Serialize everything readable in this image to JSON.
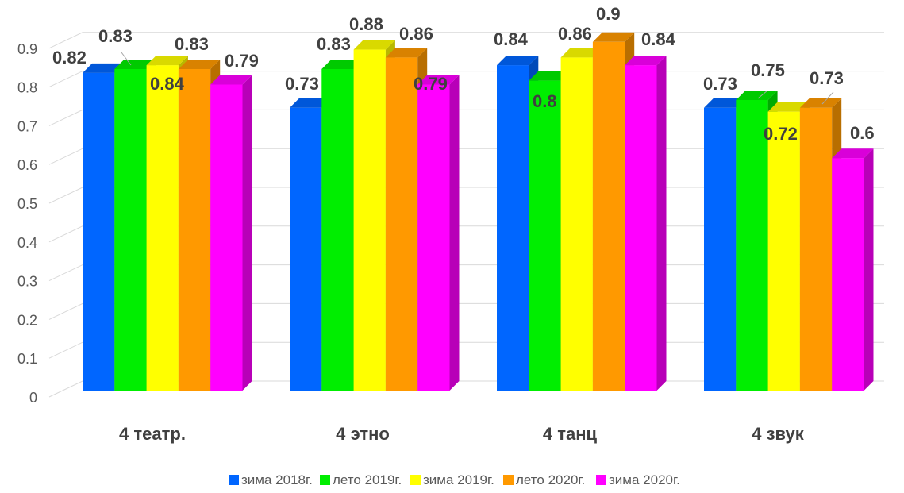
{
  "chart_data": {
    "type": "bar",
    "title": "",
    "xlabel": "",
    "ylabel": "",
    "ylim": [
      0,
      0.9
    ],
    "ytick_step": 0.1,
    "ytick_labels": [
      "0",
      "0.1",
      "0.2",
      "0.3",
      "0.4",
      "0.5",
      "0.6",
      "0.7",
      "0.8",
      "0.9"
    ],
    "grid": true,
    "style": "3d-clustered-column",
    "legend_position": "bottom",
    "categories": [
      "4 театр.",
      "4 этно",
      "4 танц",
      "4 звук"
    ],
    "series": [
      {
        "name": "зима 2018г.",
        "color": "#0066ff",
        "values": [
          0.82,
          0.73,
          0.84,
          0.73
        ],
        "labels": [
          "0.82",
          "0.73",
          "0.84",
          "0.73"
        ]
      },
      {
        "name": "лето 2019г.",
        "color": "#00ee00",
        "values": [
          0.83,
          0.83,
          0.8,
          0.75
        ],
        "labels": [
          "0.83",
          "0.83",
          "0.8",
          "0.75"
        ]
      },
      {
        "name": "зима 2019г.",
        "color": "#ffff00",
        "values": [
          0.84,
          0.88,
          0.86,
          0.72
        ],
        "labels": [
          "0.84",
          "0.88",
          "0.86",
          "0.72"
        ]
      },
      {
        "name": "лето 2020г.",
        "color": "#ff9900",
        "values": [
          0.83,
          0.86,
          0.9,
          0.73
        ],
        "labels": [
          "0.83",
          "0.86",
          "0.9",
          "0.73"
        ]
      },
      {
        "name": "зима 2020г.",
        "color": "#ff00ff",
        "values": [
          0.79,
          0.79,
          0.84,
          0.6
        ],
        "labels": [
          "0.79",
          "0.79",
          "0.84",
          "0.6"
        ]
      }
    ]
  }
}
